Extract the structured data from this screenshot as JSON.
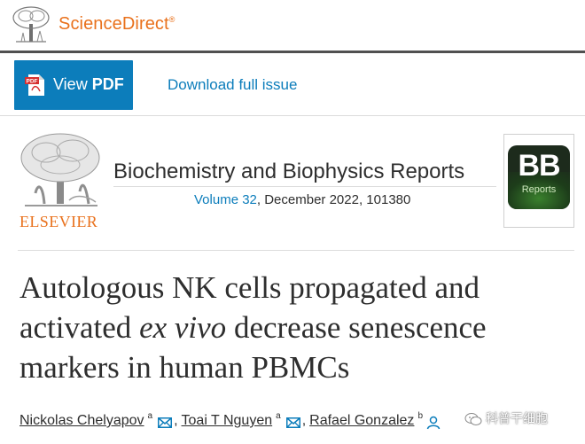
{
  "site": {
    "brand": "ScienceDirect",
    "brand_mark": "®",
    "logo_icon": "elsevier-tree-icon"
  },
  "toolbar": {
    "view_pdf_prefix": "View",
    "view_pdf_bold": "PDF",
    "pdf_icon": "pdf-file-icon",
    "download_label": "Download full issue"
  },
  "journal": {
    "publisher": "ELSEVIER",
    "title": "Biochemistry and Biophysics Reports",
    "volume_link": "Volume 32",
    "issue_rest": ", December 2022, 101380",
    "cover_big": "BB",
    "cover_small": "Reports"
  },
  "article": {
    "title_part1": "Autologous NK cells propagated and activated ",
    "title_italic": "ex vivo",
    "title_part2": " decrease senescence markers in human PBMCs"
  },
  "authors": [
    {
      "name": "Nickolas Chelyapov",
      "aff": "a"
    },
    {
      "name": "Toai T Nguyen",
      "aff": "a"
    },
    {
      "name": "Rafael Gonzalez",
      "aff": "b"
    }
  ],
  "watermark": {
    "text": "科普干细胞",
    "icon": "wechat-icon"
  },
  "colors": {
    "brand_orange": "#e9711c",
    "link_blue": "#0c7dbb",
    "text_dark": "#2e2e2e"
  }
}
